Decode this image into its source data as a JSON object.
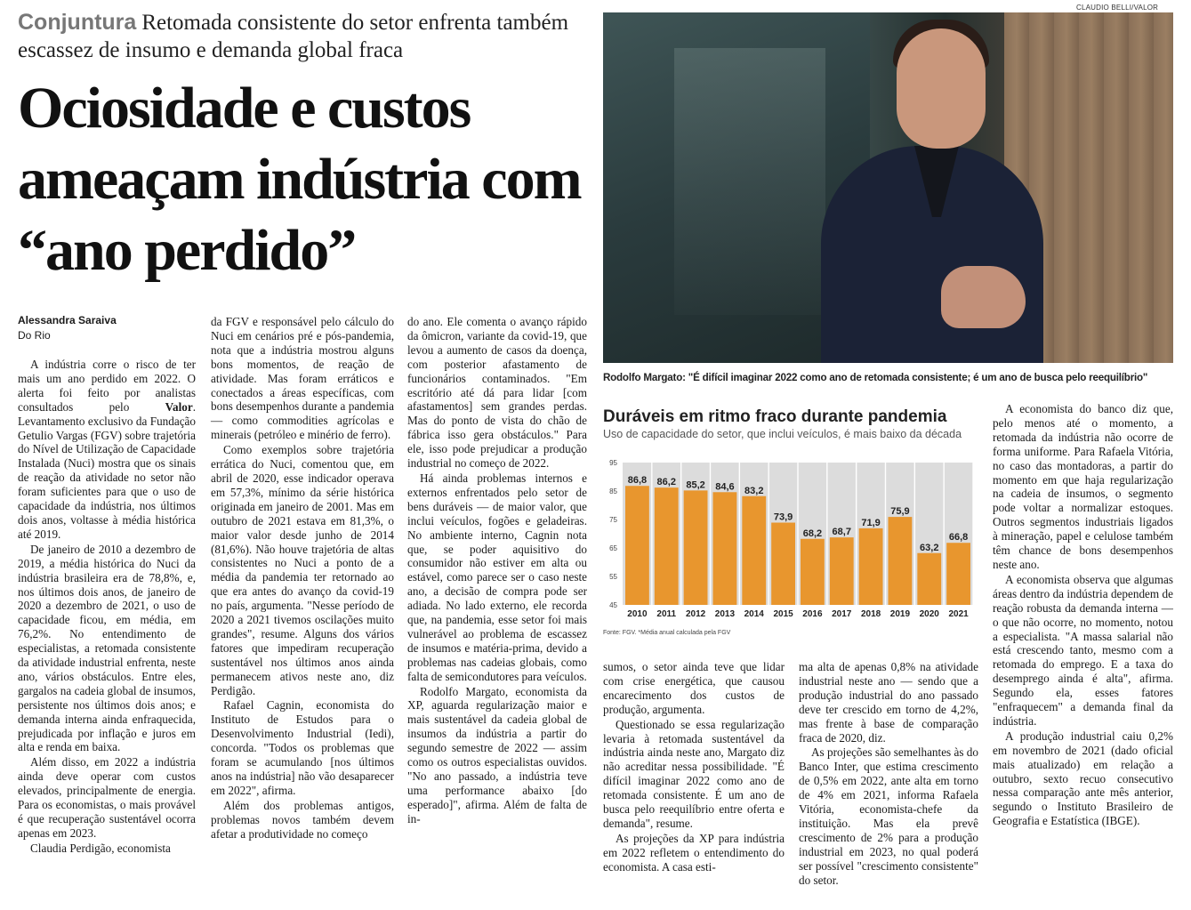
{
  "kicker": {
    "tag": "Conjuntura",
    "text": "Retomada consistente do setor enfrenta também escassez de insumo e demanda global fraca"
  },
  "headline": "Ociosidade e custos ameaçam indústria com “ano perdido”",
  "byline": {
    "author": "Alessandra Saraiva",
    "location": "Do Rio"
  },
  "photo": {
    "credit": "CLAUDIO BELLI/VALOR",
    "caption": "Rodolfo Margato: \"É difícil imaginar 2022 como ano de retomada consistente; é um ano de busca pelo reequilíbrio\""
  },
  "col1": [
    {
      "t": "A indústria corre o risco de ter mais um ano perdido em 2022. O alerta foi feito por analistas consultados pelo ",
      "b": "Valor",
      "a": ". Levantamento exclusivo da Fundação Getulio Vargas (FGV) sobre trajetória do Nível de Utilização de Capacidade Instalada (Nuci) mostra que os sinais de reação da atividade no setor não foram suficientes para que o uso de capacidade da indústria, nos últimos dois anos, voltasse à média histórica até 2019."
    },
    {
      "t": "De janeiro de 2010 a dezembro de 2019, a média histórica do Nuci da indústria brasileira era de 78,8%, e, nos últimos dois anos, de janeiro de 2020 a dezembro de 2021, o uso de capacidade ficou, em média, em 76,2%. No entendimento de especialistas, a retomada consistente da atividade industrial enfrenta, neste ano, vários obstáculos. Entre eles, gargalos na cadeia global de insumos, persistente nos últimos dois anos; e demanda interna ainda enfraquecida, prejudicada por inflação e juros em alta e renda em baixa."
    },
    {
      "t": "Além disso, em 2022 a indústria ainda deve operar com custos elevados, principalmente de energia. Para os economistas, o mais provável é que recuperação sustentável ocorra apenas em 2023."
    },
    {
      "t": "Claudia Perdigão, economista"
    }
  ],
  "col2": [
    {
      "t": "da FGV e responsável pelo cálculo do Nuci em cenários pré e pós-pandemia, nota que a indústria mostrou alguns bons momentos, de reação de atividade. Mas foram erráticos e conectados a áreas específicas, com bons desempenhos durante a pandemia — como commodities agrícolas e minerais (petróleo e minério de ferro).",
      "cont": true
    },
    {
      "t": "Como exemplos sobre trajetória errática do Nuci, comentou que, em abril de 2020, esse indicador operava em 57,3%, mínimo da série histórica originada em janeiro de 2001. Mas em outubro de 2021 estava em 81,3%, o maior valor desde junho de 2014 (81,6%). Não houve trajetória de altas consistentes no Nuci a ponto de a média da pandemia ter retornado ao que era antes do avanço da covid-19 no país, argumenta. \"Nesse período de 2020 a 2021 tivemos oscilações muito grandes\", resume. Alguns dos vários fatores que impediram recuperação sustentável nos últimos anos ainda permanecem ativos neste ano, diz Perdigão."
    },
    {
      "t": "Rafael Cagnin, economista do Instituto de Estudos para o Desenvolvimento Industrial (Iedi), concorda. \"Todos os problemas que foram se acumulando [nos últimos anos na indústria] não vão desaparecer em 2022\", afirma."
    },
    {
      "t": "Além dos problemas antigos, problemas novos também devem afetar a produtividade no começo"
    }
  ],
  "col3": [
    {
      "t": "do ano. Ele comenta o avanço rápido da ômicron, variante da covid-19, que levou a aumento de casos da doença, com posterior afastamento de funcionários contaminados. \"Em escritório até dá para lidar [com afastamentos] sem grandes perdas. Mas do ponto de vista do chão de fábrica isso gera obstáculos.\" Para ele, isso pode prejudicar a produção industrial no começo de 2022.",
      "cont": true
    },
    {
      "t": "Há ainda problemas internos e externos enfrentados pelo setor de bens duráveis — de maior valor, que inclui veículos, fogões e geladeiras. No ambiente interno, Cagnin nota que, se poder aquisitivo do consumidor não estiver em alta ou estável, como parece ser o caso neste ano, a decisão de compra pode ser adiada. No lado externo, ele recorda que, na pandemia, esse setor foi mais vulnerável ao problema de escassez de insumos e matéria-prima, devido a problemas nas cadeias globais, como falta de semicondutores para veículos."
    },
    {
      "t": "Rodolfo Margato, economista da XP, aguarda regularização maior e mais sustentável da cadeia global de insumos da indústria a partir do segundo semestre de 2022 — assim como os outros especialistas ouvidos. \"No ano passado, a indústria teve uma performance abaixo [do esperado]\", afirma. Além de falta de in-"
    }
  ],
  "col4": [
    {
      "t": "sumos, o setor ainda teve que lidar com crise energética, que causou encarecimento dos custos de produção, argumenta.",
      "cont": true
    },
    {
      "t": "Questionado se essa regularização levaria à retomada sustentável da indústria ainda neste ano, Margato diz não acreditar nessa possibilidade. \"É difícil imaginar 2022 como ano de retomada consistente. É um ano de busca pelo reequilíbrio entre oferta e demanda\", resume."
    },
    {
      "t": "As projeções da XP para indústria em 2022 refletem o entendimento do economista. A casa esti-"
    }
  ],
  "col5": [
    {
      "t": "ma alta de apenas 0,8% na atividade industrial neste ano — sendo que a produção industrial do ano passado deve ter crescido em torno de 4,2%, mas frente à base de comparação fraca de 2020, diz.",
      "cont": true
    },
    {
      "t": "As projeções são semelhantes às do Banco Inter, que estima crescimento de 0,5% em 2022, ante alta em torno de 4% em 2021, informa Rafaela Vitória, economista-chefe da instituição. Mas ela prevê crescimento de 2% para a produção industrial em 2023, no qual poderá ser possível \"crescimento consistente\" do setor."
    }
  ],
  "col6": [
    {
      "t": "A economista do banco diz que, pelo menos até o momento, a retomada da indústria não ocorre de forma uniforme. Para Rafaela Vitória, no caso das montadoras, a partir do momento em que haja regularização na cadeia de insumos, o segmento pode voltar a normalizar estoques. Outros segmentos industriais ligados à mineração, papel e celulose também têm chance de bons desempenhos neste ano."
    },
    {
      "t": "A economista observa que algumas áreas dentro da indústria dependem de reação robusta da demanda interna — o que não ocorre, no momento, notou a especialista. \"A massa salarial não está crescendo tanto, mesmo com a retomada do emprego. E a taxa do desemprego ainda é alta\", afirma. Segundo ela, esses fatores \"enfraquecem\" a demanda final da indústria."
    },
    {
      "t": "A produção industrial caiu 0,2% em novembro de 2021 (dado oficial mais atualizado) em relação a outubro, sexto recuo consecutivo nessa comparação ante mês anterior, segundo o Instituto Brasileiro de Geografia e Estatística (IBGE)."
    }
  ],
  "chart_data": {
    "type": "bar",
    "title": "Duráveis em ritmo fraco durante pandemia",
    "subtitle": "Uso de capacidade do setor, que inclui veículos, é mais baixo da década",
    "categories": [
      "2010",
      "2011",
      "2012",
      "2013",
      "2014",
      "2015",
      "2016",
      "2017",
      "2018",
      "2019",
      "2020",
      "2021"
    ],
    "values": [
      86.8,
      86.2,
      85.2,
      84.6,
      83.2,
      73.9,
      68.2,
      68.7,
      71.9,
      75.9,
      63.2,
      66.8
    ],
    "value_labels": [
      "86,8",
      "86,2",
      "85,2",
      "84,6",
      "83,2",
      "73,9",
      "68,2",
      "68,7",
      "71,9",
      "75,9",
      "63,2",
      "66,8"
    ],
    "yticks": [
      45,
      55,
      65,
      75,
      85,
      95
    ],
    "ylim": [
      45,
      95
    ],
    "bar_color": "#e8962e",
    "note": "Fonte: FGV. *Média anual calculada pela FGV"
  }
}
